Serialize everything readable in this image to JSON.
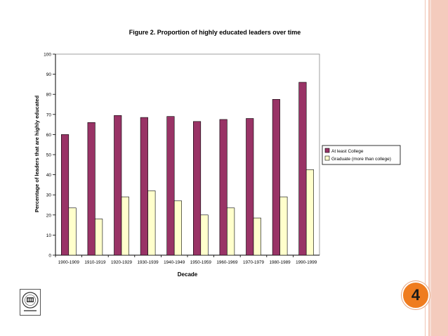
{
  "slide": {
    "page_number": "4",
    "colors": {
      "stripe": "#f4cbbd",
      "badge": "#ef7c1f"
    },
    "logo_icon": "institution-logo-icon"
  },
  "chart_data": {
    "type": "bar",
    "title": "Figure 2. Proportion of highly educated  leaders over time",
    "xlabel": "Decade",
    "ylabel": "Percentage of  leaders that are highly educated",
    "ylim": [
      0,
      100
    ],
    "yticks": [
      0,
      10,
      20,
      30,
      40,
      50,
      60,
      70,
      80,
      90,
      100
    ],
    "grid": false,
    "legend_position": "right",
    "categories": [
      "1900-1909",
      "1910-1919",
      "1920-1929",
      "1930-1939",
      "1940-1949",
      "1950-1959",
      "1960-1969",
      "1970-1979",
      "1980-1989",
      "1990-1999"
    ],
    "series": [
      {
        "name": "At least College",
        "color": "#993366",
        "values": [
          60,
          66,
          69.5,
          68.5,
          69,
          66.5,
          67.5,
          68,
          77.5,
          86
        ]
      },
      {
        "name": "Graduate (more than college)",
        "color": "#ffffcc",
        "values": [
          23.5,
          18,
          29,
          32,
          27,
          20,
          23.5,
          18.5,
          29,
          42.5
        ]
      }
    ]
  }
}
